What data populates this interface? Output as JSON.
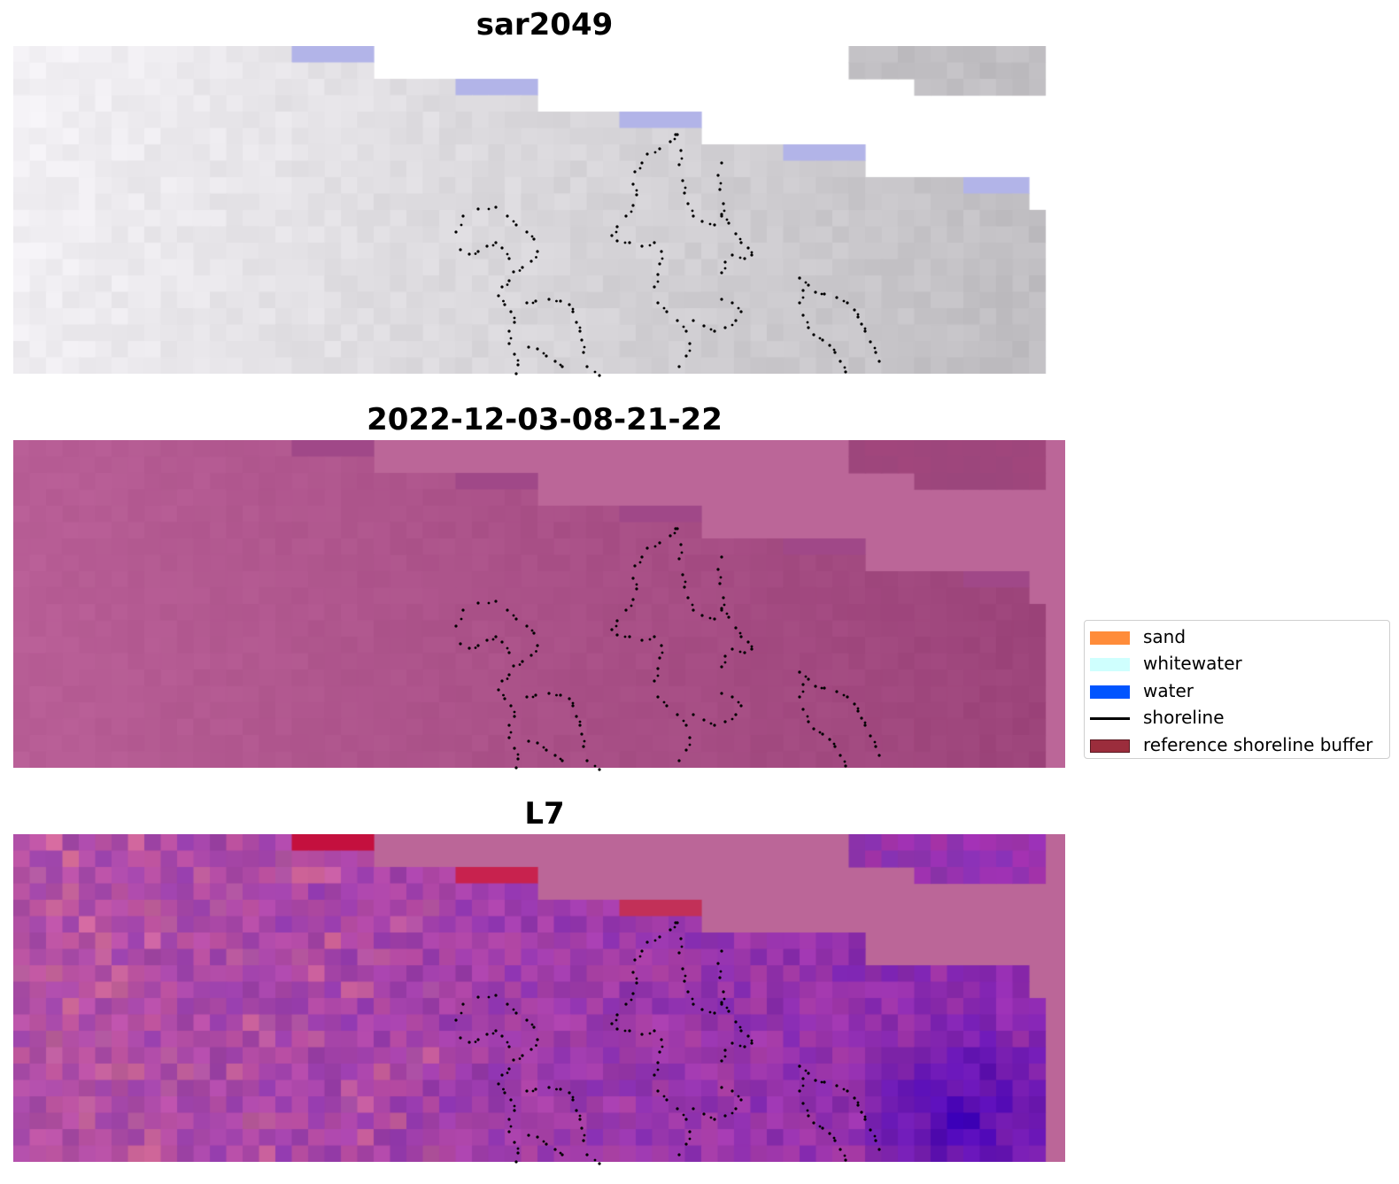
{
  "panels": [
    {
      "title": "sar2049"
    },
    {
      "title": "2022-12-03-08-21-22"
    },
    {
      "title": "L7"
    }
  ],
  "legend": {
    "placement": "right-center",
    "items": [
      {
        "label": "sand",
        "color": "#ff8c3a",
        "kind": "patch"
      },
      {
        "label": "whitewater",
        "color": "#cffffe",
        "kind": "patch"
      },
      {
        "label": "water",
        "color": "#0055ff",
        "kind": "patch"
      },
      {
        "label": "shoreline",
        "color": "#000000",
        "kind": "line"
      },
      {
        "label": "reference shoreline buffer",
        "color": "#9b2d3c",
        "kind": "patch"
      }
    ]
  },
  "colors": {
    "background": "#ffffff",
    "buffer_overlay": "#bb6698",
    "shoreline_points": "#000000"
  }
}
